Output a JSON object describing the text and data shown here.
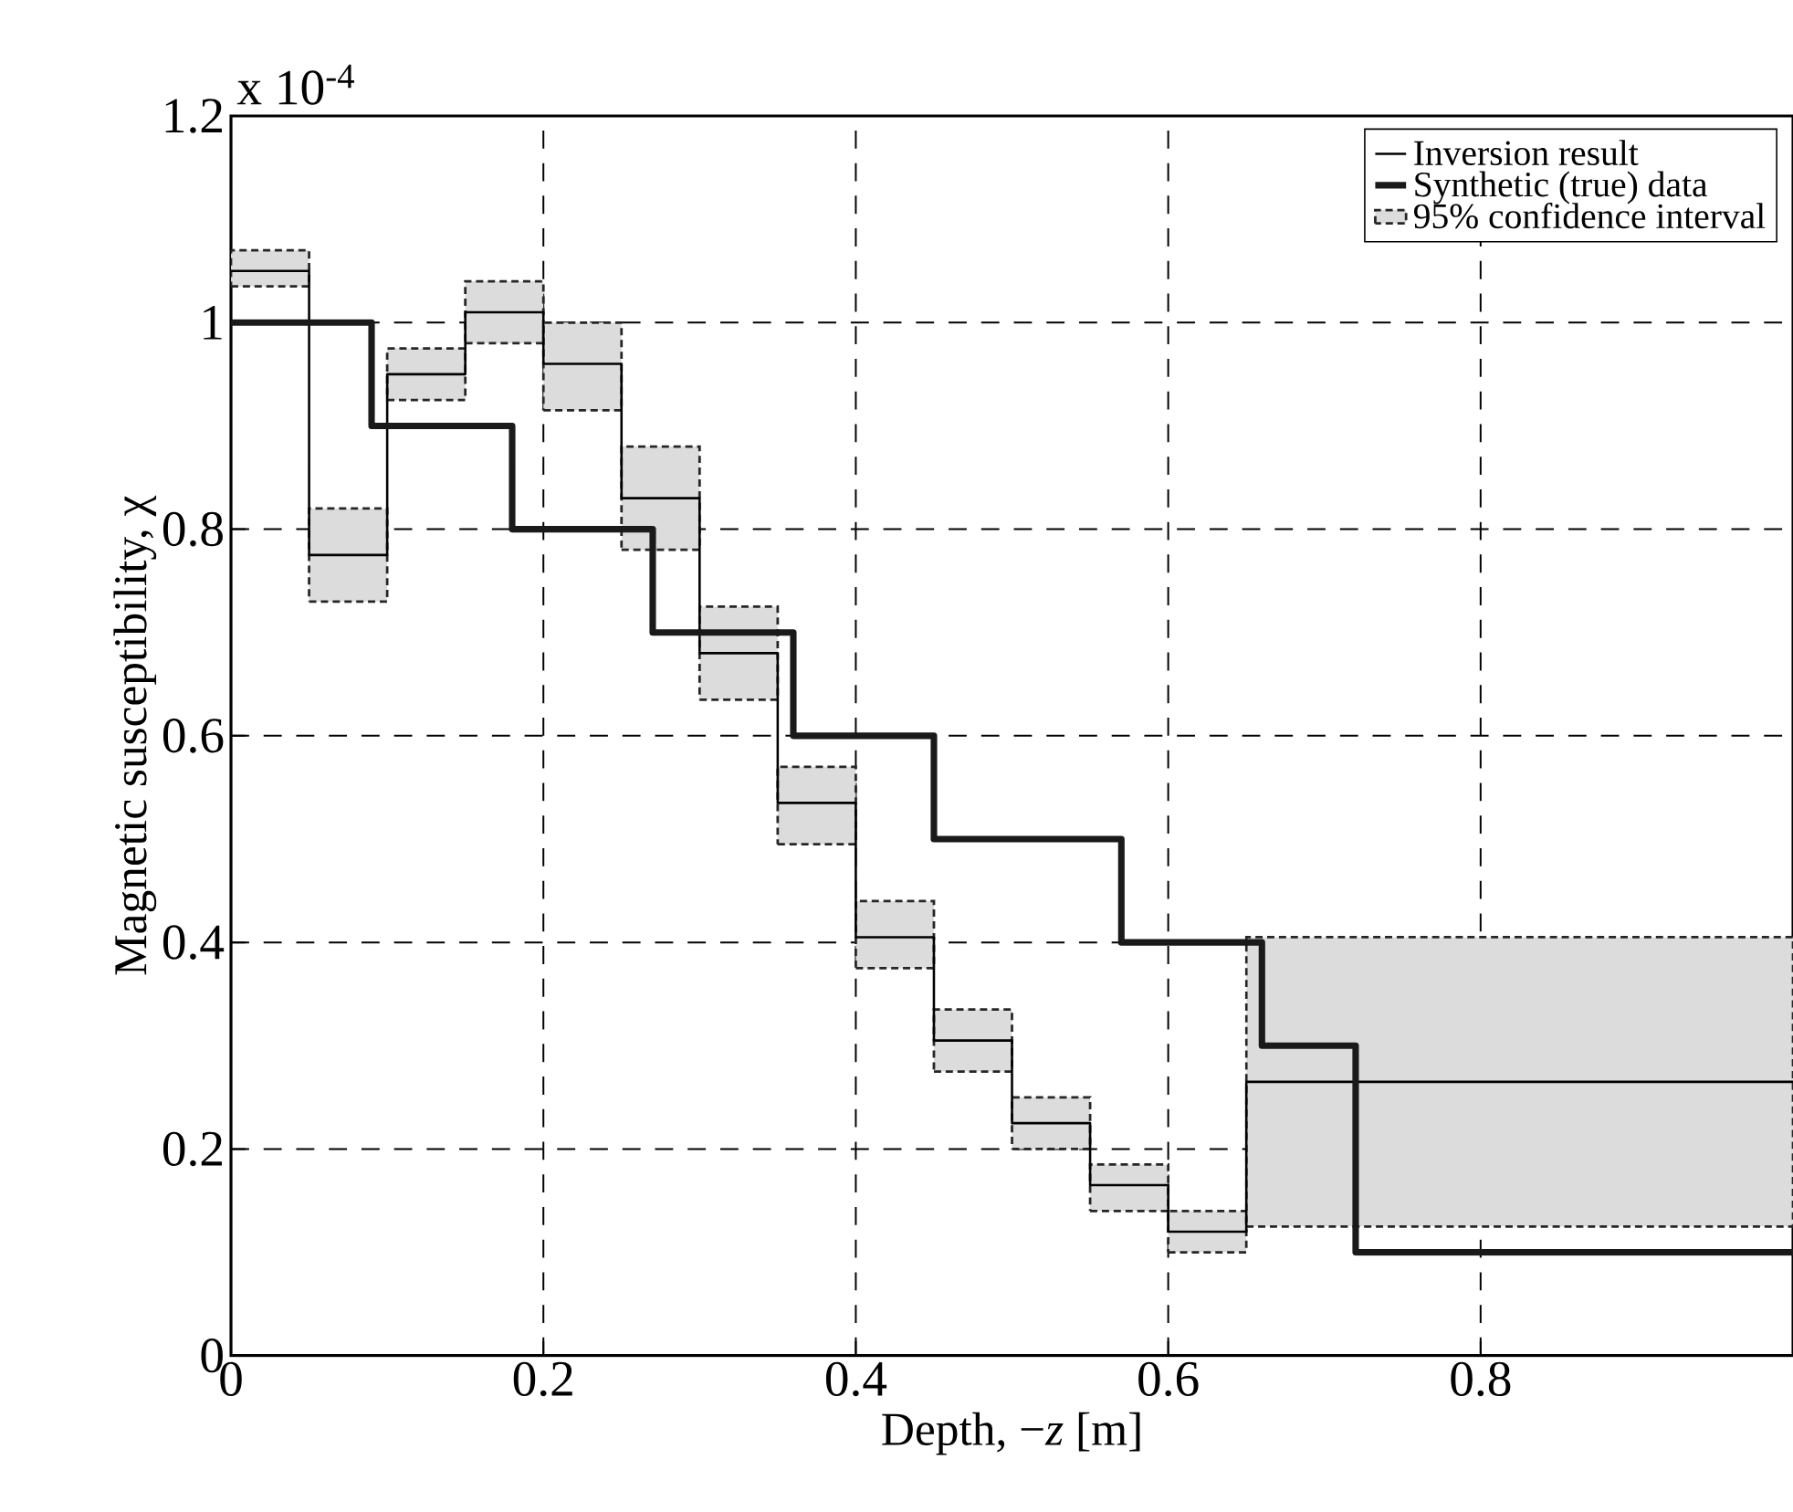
{
  "chart_data": {
    "type": "step",
    "xlabel": "Depth, −*z* [m]",
    "ylabel": "Magnetic susceptibility, χ",
    "annotations": [
      "x 10$^{-4}$",
      "95% confidence interval"
    ],
    "xlim": [
      0,
      1
    ],
    "xticks": [
      0,
      0.2,
      0.4,
      0.6,
      0.8
    ],
    "ylim": [
      0,
      1.2
    ],
    "yticks": [
      0,
      0.2,
      0.4,
      0.6,
      0.8,
      1,
      1.2
    ],
    "grid": true,
    "legend": "top right",
    "series": [
      {
        "name": "Inversion result",
        "color": "#000000",
        "x": [
          0,
          0.05,
          0.1,
          0.15,
          0.2,
          0.25,
          0.3,
          0.35,
          0.4,
          0.45,
          0.5,
          0.55,
          0.6,
          0.65,
          1
        ],
        "values": [
          1.05,
          0.775,
          0.95,
          1.01,
          0.96,
          0.83,
          0.68,
          0.535,
          0.405,
          0.305,
          0.225,
          0.165,
          0.12,
          0.265,
          0.265
        ],
        "lower": [
          1.035,
          0.73,
          0.925,
          0.98,
          0.915,
          0.78,
          0.635,
          0.495,
          0.375,
          0.275,
          0.2,
          0.14,
          0.1,
          0.125,
          0.125
        ],
        "upper": [
          1.07,
          0.82,
          0.975,
          1.04,
          1.0,
          0.88,
          0.725,
          0.57,
          0.44,
          0.335,
          0.25,
          0.185,
          0.14,
          0.405,
          0.405
        ]
      },
      {
        "name": "Synthetic (true) data",
        "color": "#1a1a1a",
        "x": [
          0,
          0.09,
          0.18,
          0.27,
          0.36,
          0.45,
          0.57,
          0.66,
          0.72,
          1
        ],
        "values": [
          1.0,
          0.9,
          0.8,
          0.7,
          0.6,
          0.5,
          0.4,
          0.3,
          0.1,
          0.1
        ]
      }
    ]
  }
}
